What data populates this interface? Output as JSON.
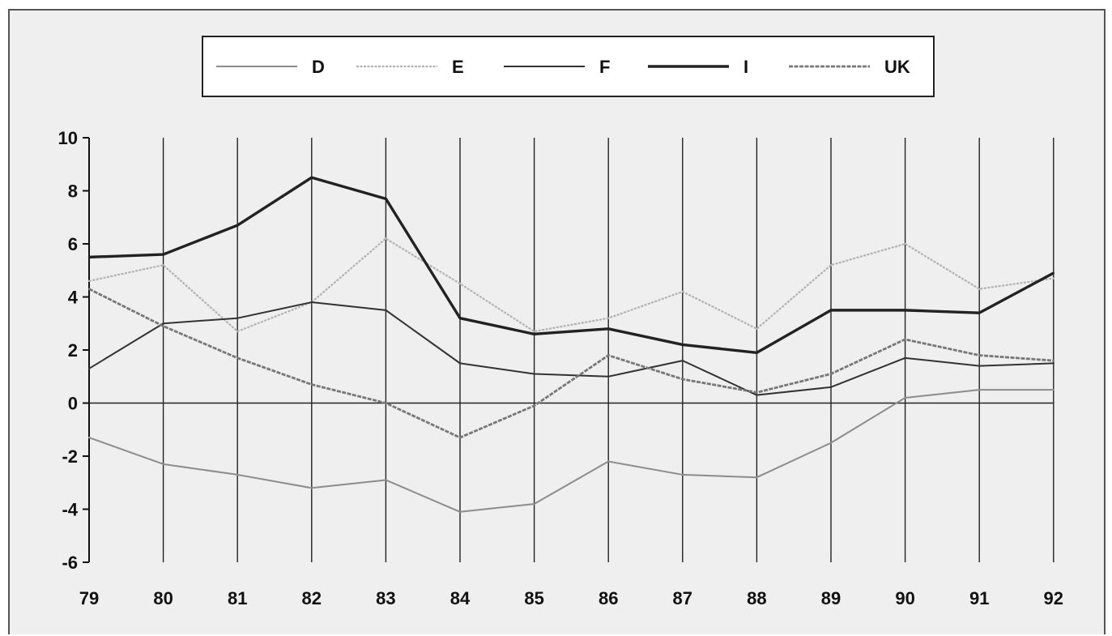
{
  "chart_data": {
    "type": "line",
    "title": "",
    "xlabel": "",
    "ylabel": "",
    "x": [
      "79",
      "80",
      "81",
      "82",
      "83",
      "84",
      "85",
      "86",
      "87",
      "88",
      "89",
      "90",
      "91",
      "92"
    ],
    "ylim": [
      -6,
      10
    ],
    "yticks": [
      "10",
      "8",
      "6",
      "4",
      "2",
      "0",
      "-2",
      "-4",
      "-6"
    ],
    "grid": "vertical",
    "legend_position": "top",
    "series": [
      {
        "name": "D",
        "color": "#8c8c8c",
        "style": "solid",
        "values": [
          -1.3,
          -2.3,
          -2.7,
          -3.2,
          -2.9,
          -4.1,
          -3.8,
          -2.2,
          -2.7,
          -2.8,
          -1.5,
          0.2,
          0.5,
          0.5
        ]
      },
      {
        "name": "E",
        "color": "#b2b2b2",
        "style": "dotted",
        "values": [
          4.6,
          5.2,
          2.7,
          3.8,
          6.2,
          4.5,
          2.7,
          3.2,
          4.2,
          2.8,
          5.2,
          6.0,
          4.3,
          4.7
        ]
      },
      {
        "name": "F",
        "color": "#333333",
        "style": "solid",
        "values": [
          1.3,
          3.0,
          3.2,
          3.8,
          3.5,
          1.5,
          1.1,
          1.0,
          1.6,
          0.3,
          0.6,
          1.7,
          1.4,
          1.5
        ]
      },
      {
        "name": "I",
        "color": "#222222",
        "style": "bold",
        "values": [
          5.5,
          5.6,
          6.7,
          8.5,
          7.7,
          3.2,
          2.6,
          2.8,
          2.2,
          1.9,
          3.5,
          3.5,
          3.4,
          4.9
        ]
      },
      {
        "name": "UK",
        "color": "#777777",
        "style": "textured",
        "values": [
          4.3,
          2.9,
          1.7,
          0.7,
          0.0,
          -1.3,
          -0.1,
          1.8,
          0.9,
          0.4,
          1.1,
          2.4,
          1.8,
          1.6
        ]
      }
    ]
  }
}
